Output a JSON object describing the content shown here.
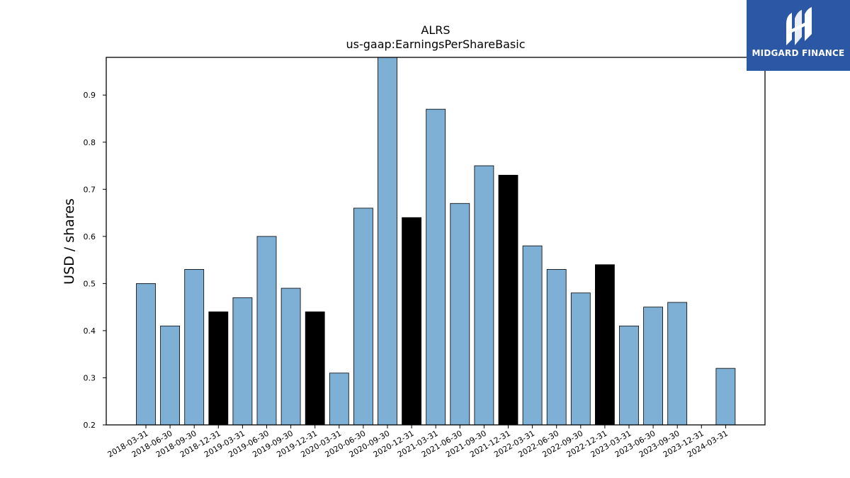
{
  "brand": {
    "name": "MIDGARD FINANCE",
    "color": "#2b57a5"
  },
  "chart_data": {
    "type": "bar",
    "title": "ALRS",
    "subtitle": "us-gaap:EarningsPerShareBasic",
    "xlabel": "",
    "ylabel": "USD / shares",
    "ylim": [
      0.2,
      0.98
    ],
    "yticks": [
      0.2,
      0.3,
      0.4,
      0.5,
      0.6,
      0.7,
      0.8,
      0.9
    ],
    "grid": false,
    "categories": [
      "2018-03-31",
      "2018-06-30",
      "2018-09-30",
      "2018-12-31",
      "2019-03-31",
      "2019-06-30",
      "2019-09-30",
      "2019-12-31",
      "2020-03-31",
      "2020-06-30",
      "2020-09-30",
      "2020-12-31",
      "2021-03-31",
      "2021-06-30",
      "2021-09-30",
      "2021-12-31",
      "2022-03-31",
      "2022-06-30",
      "2022-09-30",
      "2022-12-31",
      "2023-03-31",
      "2023-06-30",
      "2023-09-30",
      "2023-12-31",
      "2024-03-31"
    ],
    "values": [
      0.5,
      0.41,
      0.53,
      0.44,
      0.47,
      0.6,
      0.49,
      0.44,
      0.31,
      0.66,
      0.98,
      0.64,
      0.87,
      0.67,
      0.75,
      0.73,
      0.58,
      0.53,
      0.48,
      0.54,
      0.41,
      0.45,
      0.46,
      null,
      0.32
    ],
    "colors": {
      "quarter": "#7eb0d5",
      "year_end": "#000000",
      "edge": "#000000"
    }
  }
}
